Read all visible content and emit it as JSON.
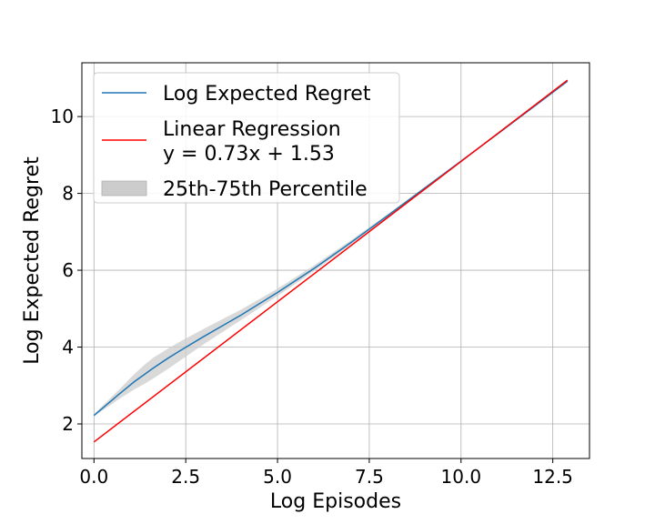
{
  "chart_data": {
    "type": "line",
    "title": "",
    "xlabel": "Log Episodes",
    "ylabel": "Log Expected Regret",
    "xlim": [
      -0.33,
      13.5
    ],
    "ylim": [
      1.1,
      11.4
    ],
    "xticks": [
      0.0,
      2.5,
      5.0,
      7.5,
      10.0,
      12.5
    ],
    "xtick_labels": [
      "0.0",
      "2.5",
      "5.0",
      "7.5",
      "10.0",
      "12.5"
    ],
    "yticks": [
      2,
      4,
      6,
      8,
      10
    ],
    "ytick_labels": [
      "2",
      "4",
      "6",
      "8",
      "10"
    ],
    "grid": true,
    "legend_position": "top-left",
    "series": [
      {
        "name": "Log Expected Regret",
        "color": "#1f77b4",
        "x": [
          0.0,
          0.69,
          1.1,
          1.39,
          1.61,
          2.0,
          2.3,
          3.0,
          4.0,
          5.0,
          6.0,
          7.0,
          8.0,
          9.0,
          10.0,
          11.0,
          12.0,
          12.9
        ],
        "y": [
          2.22,
          2.78,
          3.1,
          3.3,
          3.45,
          3.7,
          3.88,
          4.28,
          4.83,
          5.42,
          6.05,
          6.72,
          7.42,
          8.13,
          8.84,
          9.55,
          10.27,
          10.92
        ]
      },
      {
        "name": "Linear Regression\ny = 0.73x + 1.53",
        "color": "#ff0000",
        "slope": 0.73,
        "intercept": 1.53,
        "x": [
          0.0,
          12.9
        ]
      }
    ],
    "band": {
      "name": "25th-75th Percentile",
      "color": "#cccccc",
      "x": [
        0.0,
        0.69,
        1.1,
        1.39,
        1.61,
        2.0,
        2.3,
        3.0,
        4.0,
        5.0,
        6.0,
        7.0,
        8.0,
        9.0,
        10.0,
        11.0,
        12.0,
        12.9
      ],
      "lower": [
        2.2,
        2.65,
        2.9,
        3.05,
        3.18,
        3.42,
        3.62,
        4.08,
        4.7,
        5.33,
        5.98,
        6.67,
        7.38,
        8.1,
        8.82,
        9.54,
        10.26,
        10.9
      ],
      "upper": [
        2.25,
        2.9,
        3.3,
        3.55,
        3.72,
        3.95,
        4.12,
        4.48,
        4.97,
        5.52,
        6.13,
        6.78,
        7.46,
        8.16,
        8.86,
        9.57,
        10.28,
        10.94
      ]
    }
  },
  "legend": {
    "items": [
      {
        "lines": [
          "Log Expected Regret"
        ],
        "kind": "line",
        "color": "#1f77b4"
      },
      {
        "lines": [
          "Linear Regression",
          "y = 0.73x + 1.53"
        ],
        "kind": "line",
        "color": "#ff0000"
      },
      {
        "lines": [
          "25th-75th Percentile"
        ],
        "kind": "patch",
        "color": "#cccccc"
      }
    ]
  }
}
